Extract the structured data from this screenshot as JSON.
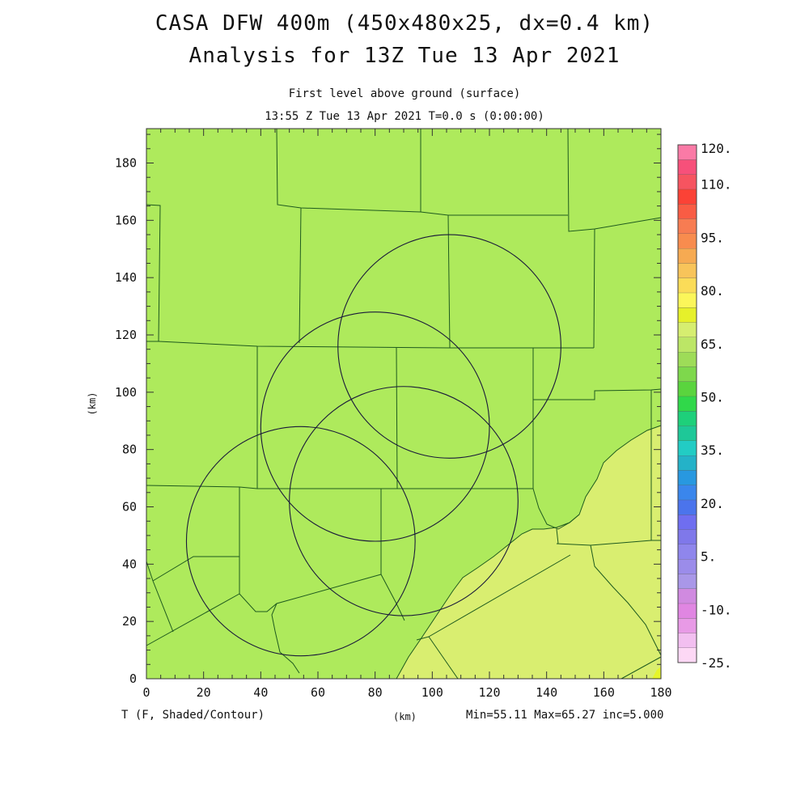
{
  "title": {
    "line1": "CASA DFW 400m (450x480x25, dx=0.4 km)",
    "line2": "Analysis for 13Z Tue 13 Apr 2021"
  },
  "subtitle": {
    "line1": "First level above ground (surface)",
    "line2": "13:55 Z Tue 13 Apr 2021   T=0.0 s (0:00:00)"
  },
  "axes": {
    "xlabel": "(km)",
    "ylabel": "(km)",
    "xlim": [
      0,
      180
    ],
    "ylim": [
      0,
      192
    ],
    "xticks": [
      "0",
      "20",
      "40",
      "60",
      "80",
      "100",
      "120",
      "140",
      "160",
      "180"
    ],
    "yticks": [
      "0",
      "20",
      "40",
      "60",
      "80",
      "100",
      "120",
      "140",
      "160",
      "180"
    ]
  },
  "footer": {
    "variable": "T (F, Shaded/Contour)",
    "stats": "Min=55.11 Max=65.27 inc=5.000"
  },
  "field": {
    "base_color": "#aeea5c",
    "warm_color": "#d9ee70",
    "hot_color": "#e6f52a",
    "outline_color": "#1e5a1e"
  },
  "radars": [
    {
      "center": [
        106,
        116
      ],
      "radius": 39
    },
    {
      "center": [
        80,
        88
      ],
      "radius": 40
    },
    {
      "center": [
        54,
        48
      ],
      "radius": 40
    },
    {
      "center": [
        90,
        62
      ],
      "radius": 40
    }
  ],
  "colorbar": {
    "colors": [
      "#fdd8f5",
      "#f2bff0",
      "#e89ae6",
      "#e086e2",
      "#d08ae0",
      "#a997e8",
      "#9b8cea",
      "#8f86ec",
      "#7f78ea",
      "#6f6ef0",
      "#4b74ec",
      "#3a86ec",
      "#2898e0",
      "#24b2c8",
      "#22ccc4",
      "#1ec898",
      "#1ed07a",
      "#30d84a",
      "#5ad43e",
      "#7ed84c",
      "#9edc58",
      "#bce666",
      "#d6ee70",
      "#e6f02a",
      "#fbf65a",
      "#fbdc58",
      "#f8c45a",
      "#f6aa52",
      "#f88c4e",
      "#f77c52",
      "#f95c44",
      "#fb4236",
      "#f65460",
      "#f7507a",
      "#fa7aa6"
    ],
    "labels": [
      "-25.",
      "-10.",
      "5.",
      "20.",
      "35.",
      "50.",
      "65.",
      "80.",
      "95.",
      "110.",
      "120."
    ]
  }
}
